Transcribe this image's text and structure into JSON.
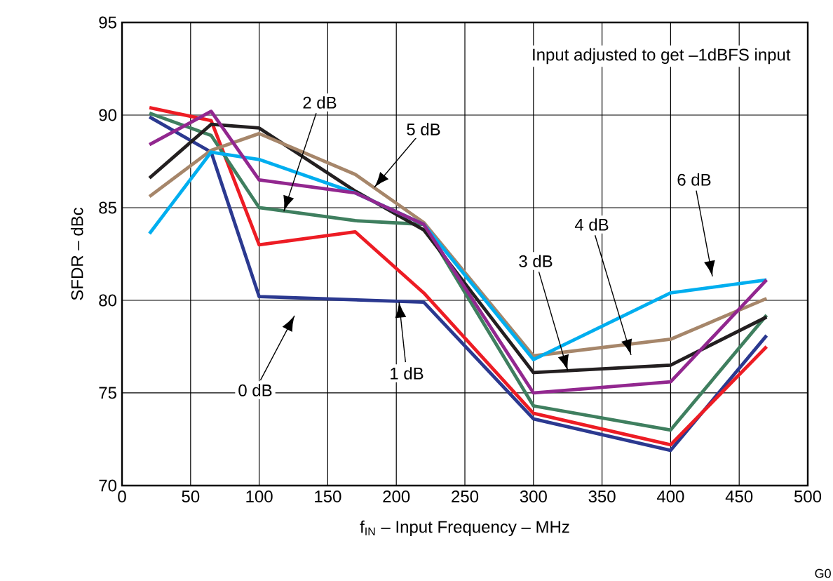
{
  "chart_data": {
    "type": "line",
    "xlabel": "f$_{IN}$ – Input Frequency – MHz",
    "ylabel": "SFDR – dBc",
    "xlim": [
      0,
      500
    ],
    "ylim": [
      70,
      95
    ],
    "xticks": [
      0,
      50,
      100,
      150,
      200,
      250,
      300,
      350,
      400,
      450,
      500
    ],
    "yticks": [
      70,
      75,
      80,
      85,
      90,
      95
    ],
    "grid": true,
    "marker": "none",
    "line_style": "solid",
    "series": [
      {
        "color": "#2b3990",
        "x": [
          20,
          65,
          100,
          220,
          300,
          400,
          470
        ],
        "values": [
          89.9,
          88.0,
          80.2,
          79.9,
          73.6,
          71.9,
          78.1
        ]
      },
      {
        "color": "#ed1c24",
        "x": [
          20,
          65,
          100,
          170,
          220,
          300,
          400,
          470
        ],
        "values": [
          90.4,
          89.7,
          83.0,
          83.7,
          80.4,
          73.9,
          72.2,
          77.5
        ]
      },
      {
        "color": "#3f7f5f",
        "x": [
          20,
          65,
          100,
          170,
          220,
          300,
          400,
          470
        ],
        "values": [
          90.1,
          88.9,
          85.0,
          84.3,
          84.1,
          74.3,
          73.0,
          79.2
        ]
      },
      {
        "color": "#231f20",
        "x": [
          20,
          65,
          100,
          170,
          220,
          300,
          400,
          470
        ],
        "values": [
          86.6,
          89.5,
          89.3,
          85.9,
          83.8,
          76.1,
          76.5,
          79.1
        ]
      },
      {
        "color": "#a6866a",
        "x": [
          20,
          65,
          100,
          170,
          220,
          300,
          400,
          470
        ],
        "values": [
          85.6,
          88.1,
          89.0,
          86.8,
          84.2,
          77.0,
          77.9,
          80.1
        ]
      },
      {
        "color": "#00aeef",
        "x": [
          20,
          65,
          100,
          170,
          220,
          300,
          400,
          470
        ],
        "values": [
          83.6,
          88.0,
          87.6,
          85.8,
          84.1,
          76.8,
          80.4,
          81.1
        ]
      },
      {
        "color": "#92278f",
        "x": [
          20,
          65,
          100,
          170,
          220,
          300,
          400,
          470
        ],
        "values": [
          88.4,
          90.2,
          86.5,
          85.8,
          84.1,
          75.0,
          75.6,
          81.1
        ]
      }
    ],
    "annotations": [
      "0 dB",
      {
        "text": "1 dB",
        "x": 202,
        "y": 79.9
      },
      {
        "text": "2 dB",
        "x": 118,
        "y": 84.8
      },
      {
        "text": "3 dB",
        "x": 325,
        "y": 76.2
      },
      "4 dB",
      {
        "text": "5 dB",
        "x": 184,
        "y": 86.1
      },
      "6 dB",
      "Input adjusted to get –1dBFS input",
      "G0"
    ]
  }
}
